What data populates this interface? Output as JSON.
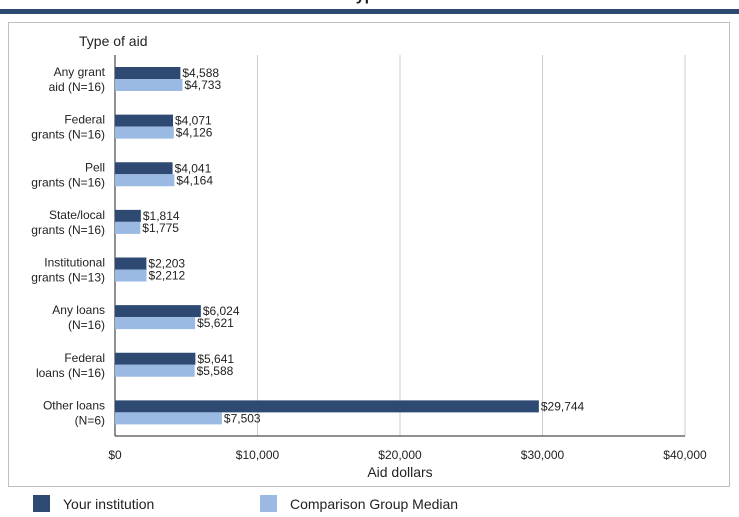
{
  "header": {
    "title_fragment": "ype"
  },
  "colors": {
    "institution": "#2e4a73",
    "comparison": "#9bbae3",
    "grid": "#cccccc",
    "axis": "#222222"
  },
  "chart_data": {
    "type": "bar",
    "orientation": "horizontal",
    "title": "Type of aid",
    "xlabel": "Aid dollars",
    "ylabel": "",
    "xlim": [
      0,
      40000
    ],
    "xticks": [
      0,
      10000,
      20000,
      30000,
      40000
    ],
    "xtick_labels": [
      "$0",
      "$10,000",
      "$20,000",
      "$30,000",
      "$40,000"
    ],
    "grid": true,
    "legend_position": "bottom",
    "categories": [
      [
        "Any grant",
        "aid (N=16)"
      ],
      [
        "Federal",
        "grants (N=16)"
      ],
      [
        "Pell",
        "grants (N=16)"
      ],
      [
        "State/local",
        "grants (N=16)"
      ],
      [
        "Institutional",
        "grants (N=13)"
      ],
      [
        "Any loans",
        "(N=16)"
      ],
      [
        "Federal",
        "loans (N=16)"
      ],
      [
        "Other loans",
        "(N=6)"
      ]
    ],
    "series": [
      {
        "name": "Your institution",
        "values": [
          4588,
          4071,
          4041,
          1814,
          2203,
          6024,
          5641,
          29744
        ],
        "labels": [
          "$4,588",
          "$4,071",
          "$4,041",
          "$1,814",
          "$2,203",
          "$6,024",
          "$5,641",
          "$29,744"
        ]
      },
      {
        "name": "Comparison Group Median",
        "values": [
          4733,
          4126,
          4164,
          1775,
          2212,
          5621,
          5588,
          7503
        ],
        "labels": [
          "$4,733",
          "$4,126",
          "$4,164",
          "$1,775",
          "$2,212",
          "$5,621",
          "$5,588",
          "$7,503"
        ]
      }
    ]
  }
}
